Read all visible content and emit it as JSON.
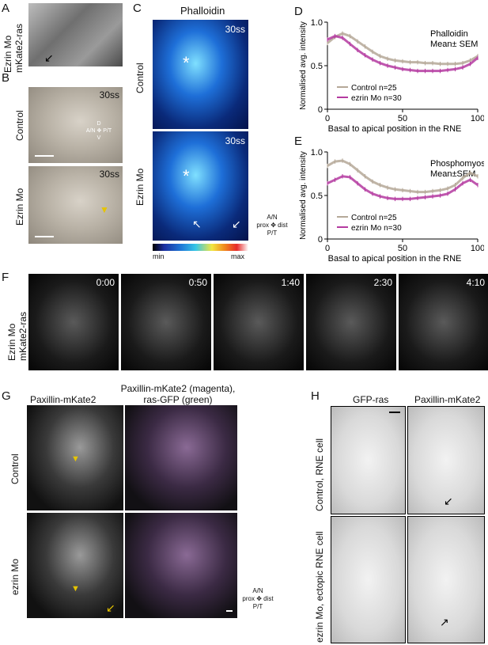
{
  "panels": {
    "A": {
      "letter": "A",
      "ylabel1": "Ezrin Mo",
      "ylabel2": "mKate2-ras"
    },
    "B": {
      "letter": "B",
      "time": "30ss",
      "row_top": "Control",
      "row_bottom": "Ezrin Mo",
      "compass": {
        "d": "D",
        "an": "A/N",
        "pt": "P/T",
        "v": "V"
      }
    },
    "C": {
      "letter": "C",
      "title": "Phalloidin",
      "time": "30ss",
      "row_top": "Control",
      "row_bottom": "Ezrin Mo",
      "colorbar_min": "min",
      "colorbar_max": "max",
      "compass": {
        "an": "A/N",
        "prox": "prox",
        "dist": "dist",
        "pt": "P/T"
      }
    },
    "D": {
      "letter": "D"
    },
    "E": {
      "letter": "E"
    },
    "F": {
      "letter": "F",
      "ylabel1": "Ezrin Mo",
      "ylabel2": "mKate2-ras",
      "times": [
        "0:00",
        "0:50",
        "1:40",
        "2:30",
        "4:10"
      ]
    },
    "G": {
      "letter": "G",
      "col1": "Paxillin-mKate2",
      "col2_line1": "Paxillin-mKate2 (magenta),",
      "col2_line2": "ras-GFP (green)",
      "row_top": "Control",
      "row_bottom": "ezrin Mo",
      "compass": {
        "an": "A/N",
        "prox": "prox",
        "dist": "dist",
        "pt": "P/T"
      }
    },
    "H": {
      "letter": "H",
      "col1": "GFP-ras",
      "col2": "Paxillin-mKate2",
      "row_top": "Control, RNE cell",
      "row_bottom": "ezrin Mo, ectopic RNE cell"
    }
  },
  "chart_data": [
    {
      "type": "line",
      "panel": "D",
      "title_line1": "Phalloidin",
      "title_line2": "Mean± SEM",
      "xlabel": "Basal to apical position in the RNE",
      "ylabel": "Normalised avg. intensity",
      "xlim": [
        0,
        100
      ],
      "ylim": [
        0,
        1.0
      ],
      "xticks": [
        "0",
        "50",
        "100"
      ],
      "yticks": [
        "0",
        "0.5",
        "1.0"
      ],
      "legend": "bottom-left",
      "x": [
        0,
        5,
        10,
        15,
        20,
        25,
        30,
        35,
        40,
        45,
        50,
        55,
        60,
        65,
        70,
        75,
        80,
        85,
        90,
        95,
        100
      ],
      "series": [
        {
          "name": "Control n=25",
          "color": "#b5a898",
          "values": [
            0.76,
            0.83,
            0.87,
            0.84,
            0.78,
            0.72,
            0.66,
            0.61,
            0.58,
            0.56,
            0.55,
            0.54,
            0.54,
            0.53,
            0.53,
            0.52,
            0.52,
            0.52,
            0.53,
            0.56,
            0.61
          ]
        },
        {
          "name": "ezrin Mo n=30",
          "color": "#b43aa0",
          "values": [
            0.8,
            0.84,
            0.82,
            0.75,
            0.68,
            0.62,
            0.57,
            0.53,
            0.5,
            0.48,
            0.46,
            0.45,
            0.44,
            0.44,
            0.44,
            0.44,
            0.45,
            0.46,
            0.48,
            0.52,
            0.59
          ]
        }
      ]
    },
    {
      "type": "line",
      "panel": "E",
      "title_line1": "Phosphomyosin",
      "title_line2": "Mean±SEM",
      "xlabel": "Basal to apical position in the RNE",
      "ylabel": "Normalised avg. intensity",
      "xlim": [
        0,
        100
      ],
      "ylim": [
        0,
        1.0
      ],
      "xticks": [
        "0",
        "50",
        "100"
      ],
      "yticks": [
        "0",
        "0.5",
        "1.0"
      ],
      "legend": "bottom-left",
      "x": [
        0,
        5,
        10,
        15,
        20,
        25,
        30,
        35,
        40,
        45,
        50,
        55,
        60,
        65,
        70,
        75,
        80,
        85,
        90,
        95,
        100
      ],
      "series": [
        {
          "name": "Control n=25",
          "color": "#b5a898",
          "values": [
            0.84,
            0.89,
            0.9,
            0.86,
            0.79,
            0.72,
            0.66,
            0.62,
            0.59,
            0.57,
            0.56,
            0.55,
            0.54,
            0.54,
            0.55,
            0.56,
            0.58,
            0.62,
            0.7,
            0.76,
            0.72
          ]
        },
        {
          "name": "ezrin Mo n=30",
          "color": "#b43aa0",
          "values": [
            0.64,
            0.68,
            0.72,
            0.71,
            0.64,
            0.57,
            0.52,
            0.49,
            0.47,
            0.46,
            0.46,
            0.46,
            0.47,
            0.48,
            0.49,
            0.5,
            0.52,
            0.57,
            0.64,
            0.68,
            0.62
          ]
        }
      ]
    }
  ]
}
